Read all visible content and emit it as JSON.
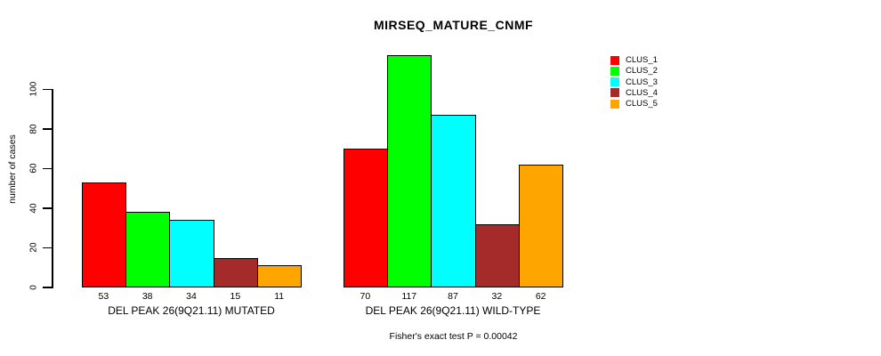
{
  "chart_data": {
    "type": "bar",
    "title": "MIRSEQ_MATURE_CNMF",
    "ylabel": "number of cases",
    "xlabel": "",
    "subtitle": "Fisher's exact test P = 0.00042",
    "yticks": [
      0,
      20,
      40,
      60,
      80,
      100
    ],
    "ylim": [
      0,
      117
    ],
    "grid": false,
    "legend_position": "top-right",
    "bar_value_labels": true,
    "categories": [
      "DEL PEAK 26(9Q21.11) MUTATED",
      "DEL PEAK 26(9Q21.11) WILD-TYPE"
    ],
    "series": [
      {
        "name": "CLUS_1",
        "color": "#FF0000",
        "values": [
          53,
          70
        ]
      },
      {
        "name": "CLUS_2",
        "color": "#00FF00",
        "values": [
          38,
          117
        ]
      },
      {
        "name": "CLUS_3",
        "color": "#00FFFF",
        "values": [
          34,
          87
        ]
      },
      {
        "name": "CLUS_4",
        "color": "#A52A2A",
        "values": [
          15,
          32
        ]
      },
      {
        "name": "CLUS_5",
        "color": "#FFA500",
        "values": [
          11,
          62
        ]
      }
    ],
    "colors": {
      "background": "#FFFFFF",
      "axis": "#000000",
      "bar_border": "#000000"
    }
  }
}
